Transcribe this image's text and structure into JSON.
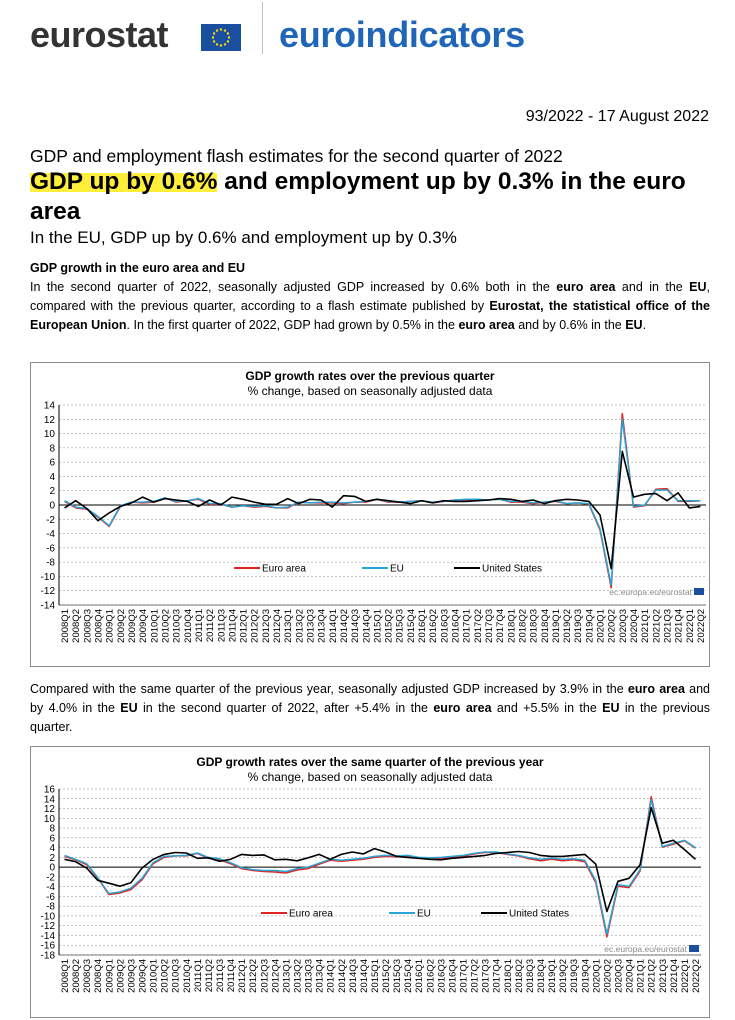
{
  "header": {
    "logo_left": "eurostat",
    "logo_right": "euroindicators"
  },
  "release": {
    "reference": "93/2022 - 17 August 2022",
    "subtitle": "GDP and employment flash estimates for the second quarter of 2022",
    "headline_highlight": "GDP up by 0.6%",
    "headline_rest": " and employment up by 0.3% in the euro area",
    "headline_sub": "In the EU, GDP up by 0.6% and employment up by 0.3%"
  },
  "section": {
    "title": "GDP growth in the euro area and EU",
    "para1": [
      {
        "t": "In the second quarter of 2022, seasonally adjusted GDP increased by 0.6% both in the ",
        "b": false
      },
      {
        "t": "euro area",
        "b": true
      },
      {
        "t": " and in the ",
        "b": false
      },
      {
        "t": "EU",
        "b": true
      },
      {
        "t": ", compared with the previous quarter, according to a flash estimate published by ",
        "b": false
      },
      {
        "t": "Eurostat, the statistical office of the European Union",
        "b": true
      },
      {
        "t": ". In the first quarter of 2022, GDP had grown by 0.5% in the ",
        "b": false
      },
      {
        "t": "euro area",
        "b": true
      },
      {
        "t": " and by 0.6% in the ",
        "b": false
      },
      {
        "t": "EU",
        "b": true
      },
      {
        "t": ".",
        "b": false
      }
    ],
    "para2": [
      {
        "t": "Compared with the same quarter of the previous year, seasonally adjusted GDP increased by 3.9% in the ",
        "b": false
      },
      {
        "t": "euro area",
        "b": true
      },
      {
        "t": " and by 4.0% in the ",
        "b": false
      },
      {
        "t": "EU",
        "b": true
      },
      {
        "t": " in the second quarter of 2022, after +5.4% in the ",
        "b": false
      },
      {
        "t": "euro area",
        "b": true
      },
      {
        "t": " and +5.5% in the ",
        "b": false
      },
      {
        "t": "EU",
        "b": true
      },
      {
        "t": " in the previous quarter.",
        "b": false
      }
    ]
  },
  "colors": {
    "euro_area": "#e3231f",
    "eu": "#2aa3d6",
    "united_states": "#000000",
    "brand_blue": "#1f66b8",
    "flag_blue": "#1a4fa0",
    "flag_star": "#ffdd00",
    "highlight": "#ffee3a"
  },
  "chart_data": [
    {
      "type": "line",
      "title": "GDP growth rates over the previous quarter",
      "subtitle": "% change, based on seasonally adjusted data",
      "source_note": "ec.europa.eu/eurostat",
      "ylim": [
        -14,
        14
      ],
      "ytick_step": 2,
      "grid": true,
      "legend": "bottom-center",
      "categories": [
        "2008Q1",
        "2008Q2",
        "2008Q3",
        "2008Q4",
        "2009Q1",
        "2009Q2",
        "2009Q3",
        "2009Q4",
        "2010Q1",
        "2010Q2",
        "2010Q3",
        "2010Q4",
        "2011Q1",
        "2011Q2",
        "2011Q3",
        "2011Q4",
        "2012Q1",
        "2012Q2",
        "2012Q3",
        "2012Q4",
        "2013Q1",
        "2013Q2",
        "2013Q3",
        "2013Q4",
        "2014Q1",
        "2014Q2",
        "2014Q3",
        "2014Q4",
        "2015Q1",
        "2015Q2",
        "2015Q3",
        "2015Q4",
        "2016Q1",
        "2016Q2",
        "2016Q3",
        "2016Q4",
        "2017Q1",
        "2017Q2",
        "2017Q3",
        "2017Q4",
        "2018Q1",
        "2018Q2",
        "2018Q3",
        "2018Q4",
        "2019Q1",
        "2019Q2",
        "2019Q3",
        "2019Q4",
        "2020Q1",
        "2020Q2",
        "2020Q3",
        "2020Q4",
        "2021Q1",
        "2021Q2",
        "2021Q3",
        "2021Q4",
        "2022Q1",
        "2022Q2"
      ],
      "series": [
        {
          "name": "Euro area",
          "color": "#e3231f",
          "values": [
            0.5,
            -0.4,
            -0.6,
            -1.7,
            -3.0,
            -0.2,
            0.4,
            0.3,
            0.4,
            1.0,
            0.4,
            0.6,
            0.8,
            0.1,
            0.1,
            -0.3,
            -0.1,
            -0.3,
            -0.2,
            -0.4,
            -0.4,
            0.4,
            0.3,
            0.3,
            0.3,
            0.2,
            0.4,
            0.4,
            0.8,
            0.4,
            0.4,
            0.5,
            0.6,
            0.3,
            0.5,
            0.7,
            0.7,
            0.7,
            0.7,
            0.8,
            0.4,
            0.4,
            0.2,
            0.4,
            0.5,
            0.2,
            0.3,
            0.1,
            -3.5,
            -11.6,
            12.8,
            -0.3,
            -0.1,
            2.2,
            2.3,
            0.5,
            0.5,
            0.6
          ]
        },
        {
          "name": "EU",
          "color": "#2aa3d6",
          "values": [
            0.6,
            -0.3,
            -0.5,
            -1.6,
            -2.9,
            -0.1,
            0.4,
            0.4,
            0.5,
            1.0,
            0.5,
            0.6,
            0.9,
            0.2,
            0.2,
            -0.3,
            -0.1,
            -0.2,
            -0.1,
            -0.4,
            -0.3,
            0.4,
            0.3,
            0.4,
            0.4,
            0.3,
            0.4,
            0.5,
            0.8,
            0.5,
            0.4,
            0.5,
            0.6,
            0.4,
            0.5,
            0.7,
            0.8,
            0.8,
            0.7,
            0.8,
            0.5,
            0.5,
            0.3,
            0.4,
            0.6,
            0.2,
            0.3,
            0.2,
            -3.3,
            -11.2,
            12.0,
            -0.2,
            0.0,
            2.1,
            2.1,
            0.6,
            0.6,
            0.6
          ]
        },
        {
          "name": "United States",
          "color": "#000000",
          "values": [
            -0.4,
            0.6,
            -0.5,
            -2.2,
            -1.1,
            -0.2,
            0.3,
            1.1,
            0.4,
            0.9,
            0.7,
            0.5,
            -0.2,
            0.7,
            0.0,
            1.1,
            0.8,
            0.4,
            0.1,
            0.1,
            0.9,
            0.2,
            0.8,
            0.7,
            -0.3,
            1.3,
            1.2,
            0.5,
            0.8,
            0.6,
            0.4,
            0.2,
            0.6,
            0.3,
            0.6,
            0.5,
            0.5,
            0.6,
            0.7,
            0.9,
            0.8,
            0.5,
            0.7,
            0.2,
            0.6,
            0.8,
            0.7,
            0.5,
            -1.4,
            -8.9,
            7.5,
            1.1,
            1.5,
            1.6,
            0.6,
            1.7,
            -0.4,
            -0.2
          ]
        }
      ]
    },
    {
      "type": "line",
      "title": "GDP growth rates over the same quarter of the previous year",
      "subtitle": "% change, based on seasonally adjusted data",
      "source_note": "ec.europa.eu/eurostat",
      "ylim": [
        -18,
        16
      ],
      "ytick_step": 2,
      "grid": true,
      "legend": "bottom-center",
      "categories": [
        "2008Q1",
        "2008Q2",
        "2008Q3",
        "2008Q4",
        "2009Q1",
        "2009Q2",
        "2009Q3",
        "2009Q4",
        "2010Q1",
        "2010Q2",
        "2010Q3",
        "2010Q4",
        "2011Q1",
        "2011Q2",
        "2011Q3",
        "2011Q4",
        "2012Q1",
        "2012Q2",
        "2012Q3",
        "2012Q4",
        "2013Q1",
        "2013Q2",
        "2013Q3",
        "2013Q4",
        "2014Q1",
        "2014Q2",
        "2014Q3",
        "2014Q4",
        "2015Q1",
        "2015Q2",
        "2015Q3",
        "2015Q4",
        "2016Q1",
        "2016Q2",
        "2016Q3",
        "2016Q4",
        "2017Q1",
        "2017Q2",
        "2017Q3",
        "2017Q4",
        "2018Q1",
        "2018Q2",
        "2018Q3",
        "2018Q4",
        "2019Q1",
        "2019Q2",
        "2019Q3",
        "2019Q4",
        "2020Q1",
        "2020Q2",
        "2020Q3",
        "2020Q4",
        "2021Q1",
        "2021Q2",
        "2021Q3",
        "2021Q4",
        "2022Q1",
        "2022Q2"
      ],
      "series": [
        {
          "name": "Euro area",
          "color": "#e3231f",
          "values": [
            2.2,
            1.5,
            0.5,
            -2.2,
            -5.6,
            -5.3,
            -4.6,
            -2.6,
            0.7,
            2.0,
            2.3,
            2.3,
            2.8,
            1.8,
            1.5,
            0.7,
            -0.3,
            -0.7,
            -0.9,
            -1.0,
            -1.2,
            -0.6,
            -0.3,
            0.6,
            1.4,
            1.2,
            1.4,
            1.6,
            2.0,
            2.2,
            2.1,
            2.3,
            1.8,
            1.7,
            1.8,
            2.0,
            2.2,
            2.7,
            3.0,
            3.0,
            2.6,
            2.3,
            1.7,
            1.3,
            1.6,
            1.3,
            1.5,
            1.1,
            -3.2,
            -14.3,
            -3.9,
            -4.2,
            -0.8,
            14.4,
            4.1,
            4.7,
            5.4,
            3.9
          ]
        },
        {
          "name": "EU",
          "color": "#2aa3d6",
          "values": [
            2.4,
            1.6,
            0.7,
            -2.1,
            -5.4,
            -5.1,
            -4.3,
            -2.3,
            0.9,
            2.2,
            2.3,
            2.4,
            2.9,
            2.0,
            1.7,
            0.9,
            -0.1,
            -0.5,
            -0.7,
            -0.7,
            -0.9,
            -0.3,
            0.0,
            0.8,
            1.6,
            1.4,
            1.6,
            1.8,
            2.2,
            2.4,
            2.3,
            2.4,
            2.0,
            1.9,
            2.0,
            2.2,
            2.4,
            2.8,
            3.1,
            3.1,
            2.7,
            2.4,
            1.9,
            1.6,
            1.8,
            1.6,
            1.7,
            1.4,
            -2.8,
            -13.7,
            -3.6,
            -3.9,
            -0.5,
            13.8,
            4.2,
            4.9,
            5.5,
            4.0
          ]
        },
        {
          "name": "United States",
          "color": "#000000",
          "values": [
            1.6,
            1.1,
            -0.2,
            -2.7,
            -3.3,
            -3.9,
            -3.2,
            -0.2,
            1.6,
            2.6,
            3.0,
            2.9,
            1.8,
            1.9,
            1.2,
            1.6,
            2.6,
            2.4,
            2.5,
            1.5,
            1.6,
            1.3,
            1.9,
            2.6,
            1.6,
            2.6,
            3.1,
            2.7,
            3.8,
            3.1,
            2.2,
            2.0,
            1.8,
            1.6,
            1.5,
            1.8,
            2.0,
            2.2,
            2.4,
            2.8,
            3.0,
            3.2,
            3.0,
            2.4,
            2.2,
            2.2,
            2.4,
            2.6,
            0.6,
            -9.1,
            -2.9,
            -2.3,
            0.5,
            12.2,
            4.9,
            5.5,
            3.6,
            1.6
          ]
        }
      ]
    }
  ]
}
